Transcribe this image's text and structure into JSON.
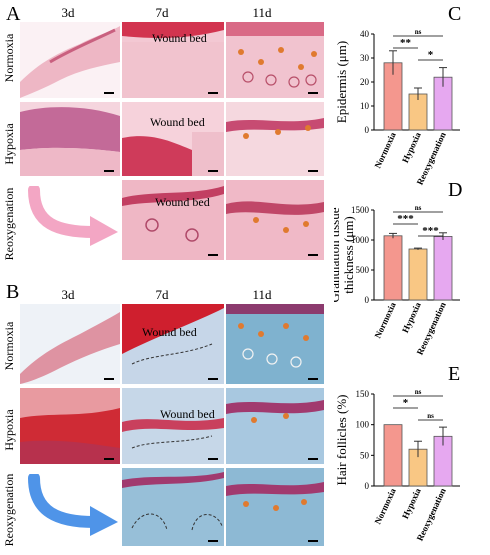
{
  "figure": {
    "panel_labels": {
      "A": "A",
      "B": "B",
      "C": "C",
      "D": "D",
      "E": "E"
    },
    "timepoints": [
      "3d",
      "7d",
      "11d"
    ],
    "rows": [
      "Normoxia",
      "Hypoxia",
      "Reoxygenation"
    ],
    "wound_bed_label": "Wound bed",
    "colors": {
      "normoxia": "#f4978e",
      "hypoxia": "#f9c784",
      "reoxygenation": "#e6a8f0",
      "he_tissue": "#e9a3b5",
      "masson_tissue": "#8fb8d6",
      "arrow_A": "#f3a6c4",
      "arrow_B": "#4f94e8",
      "hair_follicle_arrowhead": "#e07a2f"
    }
  },
  "chart_data": [
    {
      "panel": "C",
      "type": "bar",
      "categories": [
        "Normoxia",
        "Hypoxia",
        "Reoxygenation"
      ],
      "values": [
        28,
        15,
        22
      ],
      "errors": [
        5,
        2.5,
        4
      ],
      "ylabel": "Epidermis (μm)",
      "ylim": [
        0,
        40
      ],
      "yticks": [
        "0",
        "10",
        "20",
        "30",
        "40"
      ],
      "significance": [
        {
          "pair": [
            0,
            2
          ],
          "label": "ns"
        },
        {
          "pair": [
            0,
            1
          ],
          "label": "**"
        },
        {
          "pair": [
            1,
            2
          ],
          "label": "*"
        }
      ]
    },
    {
      "panel": "D",
      "type": "bar",
      "categories": [
        "Normoxia",
        "Hypoxia",
        "Reoxygenation"
      ],
      "values": [
        1070,
        850,
        1060
      ],
      "errors": [
        40,
        15,
        60
      ],
      "ylabel": "Granulation tissue thickness (μm)",
      "ylabel_lines": [
        "Granulation tissue",
        "thickness (μm)"
      ],
      "ylim": [
        0,
        1500
      ],
      "yticks": [
        "0",
        "500",
        "1000",
        "1500"
      ],
      "significance": [
        {
          "pair": [
            0,
            2
          ],
          "label": "ns"
        },
        {
          "pair": [
            0,
            1
          ],
          "label": "***"
        },
        {
          "pair": [
            1,
            2
          ],
          "label": "***"
        }
      ]
    },
    {
      "panel": "E",
      "type": "bar",
      "categories": [
        "Normoxia",
        "Hypoxia",
        "Reoxygenation"
      ],
      "values": [
        100,
        60,
        81
      ],
      "errors": [
        0,
        13,
        15
      ],
      "ylabel": "Hair follicles (%)",
      "ylim": [
        0,
        150
      ],
      "yticks": [
        "0",
        "50",
        "100",
        "150"
      ],
      "significance": [
        {
          "pair": [
            0,
            2
          ],
          "label": "ns"
        },
        {
          "pair": [
            0,
            1
          ],
          "label": "*"
        },
        {
          "pair": [
            1,
            2
          ],
          "label": "ns"
        }
      ]
    }
  ]
}
